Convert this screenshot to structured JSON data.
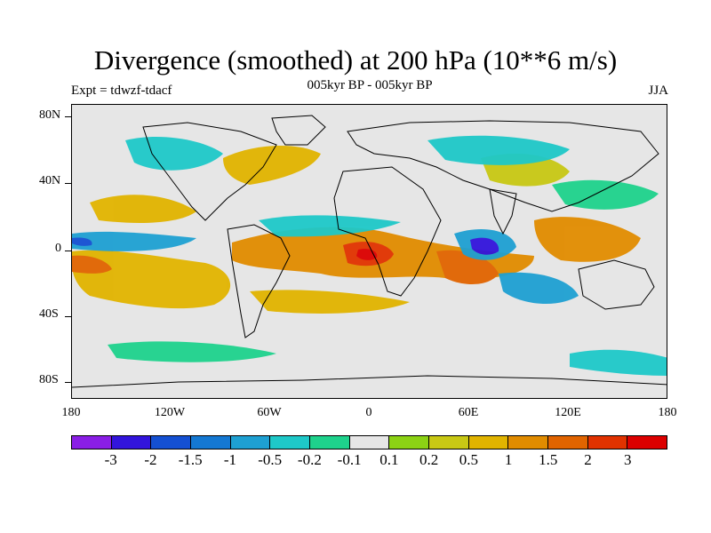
{
  "header": {
    "title": "Divergence (smoothed) at 200 hPa (10**6 m/s)",
    "experiment": "Expt = tdwzf-tdacf",
    "period": "005kyr BP - 005kyr BP",
    "season": "JJA"
  },
  "map": {
    "projection": "cylindrical equidistant",
    "lon_range": [
      -180,
      180
    ],
    "lat_range": [
      -90,
      90
    ],
    "lat_labels": [
      "80N",
      "40N",
      "0",
      "40S",
      "80S"
    ],
    "lon_labels": [
      "180",
      "120W",
      "60W",
      "0",
      "60E",
      "120E",
      "180"
    ],
    "features": [
      {
        "name": "Equatorial Africa max",
        "sign": "positive",
        "approx_lon": -5,
        "approx_lat": -3,
        "level": "3"
      },
      {
        "name": "Arabian Sea min",
        "sign": "negative",
        "approx_lon": 68,
        "approx_lat": 0,
        "level": "-3"
      },
      {
        "name": "Central Pacific min",
        "sign": "negative",
        "approx_lon": -170,
        "approx_lat": 5,
        "level": "-2"
      },
      {
        "name": "South Indian Ocean max",
        "sign": "positive",
        "approx_lon": 55,
        "approx_lat": -15,
        "level": "2"
      },
      {
        "name": "Maritime Continent max",
        "sign": "positive",
        "approx_lon": 120,
        "approx_lat": 0,
        "level": "1.5"
      }
    ]
  },
  "colorbar": {
    "labels": [
      "-3",
      "-2",
      "-1.5",
      "-1",
      "-0.5",
      "-0.2",
      "-0.1",
      "0.1",
      "0.2",
      "0.5",
      "1",
      "1.5",
      "2",
      "3"
    ],
    "colors": [
      "#8a1ee6",
      "#3214dc",
      "#1450d2",
      "#1478d2",
      "#1ea0d2",
      "#1ec8c8",
      "#1ed28c",
      "#e6e6e6",
      "#8cd214",
      "#c8c814",
      "#e1b400",
      "#e18c00",
      "#e16400",
      "#e13200",
      "#dc0000"
    ]
  }
}
